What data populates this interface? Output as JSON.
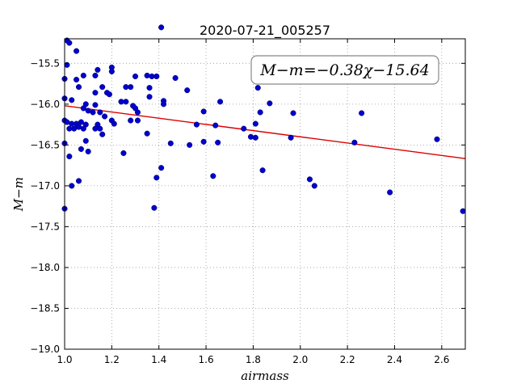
{
  "chart_data": {
    "type": "scatter",
    "title": "2020-07-21_005257",
    "xlabel": "airmass",
    "ylabel": "M−m",
    "annotation": "M−m=−0.38χ−15.64",
    "xlim": [
      1.0,
      2.7
    ],
    "ylim": [
      -19.0,
      -15.2
    ],
    "xticks": [
      "1.0",
      "1.2",
      "1.4",
      "1.6",
      "1.8",
      "2.0",
      "2.2",
      "2.4",
      "2.6"
    ],
    "yticks": [
      "−15.5",
      "−16.0",
      "−16.5",
      "−17.0",
      "−17.5",
      "−18.0",
      "−18.5",
      "−19.0"
    ],
    "grid": true,
    "point_color": "#0000cc",
    "fit_color": "#dd0000",
    "fit": {
      "slope": -0.38,
      "intercept": -15.64
    },
    "points": [
      [
        1.01,
        -15.22
      ],
      [
        1.02,
        -15.25
      ],
      [
        1.05,
        -15.35
      ],
      [
        1.01,
        -15.52
      ],
      [
        1.0,
        -15.69
      ],
      [
        1.05,
        -15.7
      ],
      [
        1.08,
        -15.65
      ],
      [
        1.06,
        -15.79
      ],
      [
        1.03,
        -15.95
      ],
      [
        1.0,
        -15.93
      ],
      [
        1.13,
        -15.65
      ],
      [
        1.14,
        -15.58
      ],
      [
        1.16,
        -15.79
      ],
      [
        1.13,
        -15.86
      ],
      [
        1.18,
        -15.86
      ],
      [
        1.19,
        -15.88
      ],
      [
        1.2,
        -15.55
      ],
      [
        1.2,
        -15.6
      ],
      [
        1.09,
        -16.0
      ],
      [
        1.08,
        -16.05
      ],
      [
        1.1,
        -16.08
      ],
      [
        1.13,
        -16.01
      ],
      [
        1.15,
        -16.1
      ],
      [
        1.17,
        -16.15
      ],
      [
        1.2,
        -16.2
      ],
      [
        1.21,
        -16.24
      ],
      [
        1.12,
        -16.1
      ],
      [
        1.14,
        -16.25
      ],
      [
        1.13,
        -16.3
      ],
      [
        1.15,
        -16.3
      ],
      [
        1.16,
        -16.37
      ],
      [
        1.0,
        -16.2
      ],
      [
        1.01,
        -16.22
      ],
      [
        1.03,
        -16.24
      ],
      [
        1.05,
        -16.24
      ],
      [
        1.07,
        -16.22
      ],
      [
        1.09,
        -16.25
      ],
      [
        1.04,
        -16.3
      ],
      [
        1.06,
        -16.28
      ],
      [
        1.08,
        -16.3
      ],
      [
        1.02,
        -16.3
      ],
      [
        1.0,
        -16.48
      ],
      [
        1.09,
        -16.45
      ],
      [
        1.07,
        -16.55
      ],
      [
        1.1,
        -16.58
      ],
      [
        1.02,
        -16.64
      ],
      [
        1.06,
        -16.94
      ],
      [
        1.03,
        -17.0
      ],
      [
        1.0,
        -17.28
      ],
      [
        1.24,
        -15.97
      ],
      [
        1.26,
        -15.79
      ],
      [
        1.28,
        -15.79
      ],
      [
        1.3,
        -15.66
      ],
      [
        1.26,
        -15.97
      ],
      [
        1.29,
        -16.02
      ],
      [
        1.3,
        -16.05
      ],
      [
        1.31,
        -16.1
      ],
      [
        1.28,
        -16.2
      ],
      [
        1.31,
        -16.2
      ],
      [
        1.25,
        -16.6
      ],
      [
        1.35,
        -15.65
      ],
      [
        1.37,
        -15.66
      ],
      [
        1.39,
        -15.66
      ],
      [
        1.36,
        -15.8
      ],
      [
        1.36,
        -15.91
      ],
      [
        1.41,
        -15.06
      ],
      [
        1.42,
        -15.96
      ],
      [
        1.42,
        -16.0
      ],
      [
        1.47,
        -15.68
      ],
      [
        1.52,
        -15.83
      ],
      [
        1.35,
        -16.36
      ],
      [
        1.45,
        -16.48
      ],
      [
        1.53,
        -16.5
      ],
      [
        1.41,
        -16.78
      ],
      [
        1.39,
        -16.9
      ],
      [
        1.38,
        -17.27
      ],
      [
        1.59,
        -16.09
      ],
      [
        1.56,
        -16.25
      ],
      [
        1.64,
        -16.26
      ],
      [
        1.66,
        -15.97
      ],
      [
        1.59,
        -16.46
      ],
      [
        1.65,
        -16.47
      ],
      [
        1.63,
        -16.88
      ],
      [
        1.76,
        -16.3
      ],
      [
        1.79,
        -16.4
      ],
      [
        1.81,
        -16.41
      ],
      [
        1.82,
        -15.8
      ],
      [
        1.87,
        -15.99
      ],
      [
        1.81,
        -16.24
      ],
      [
        1.83,
        -16.1
      ],
      [
        1.84,
        -16.81
      ],
      [
        1.96,
        -16.41
      ],
      [
        1.97,
        -16.11
      ],
      [
        2.04,
        -16.92
      ],
      [
        2.06,
        -17.0
      ],
      [
        2.23,
        -16.47
      ],
      [
        2.26,
        -16.11
      ],
      [
        2.38,
        -17.08
      ],
      [
        2.58,
        -16.43
      ],
      [
        2.69,
        -17.31
      ]
    ]
  }
}
